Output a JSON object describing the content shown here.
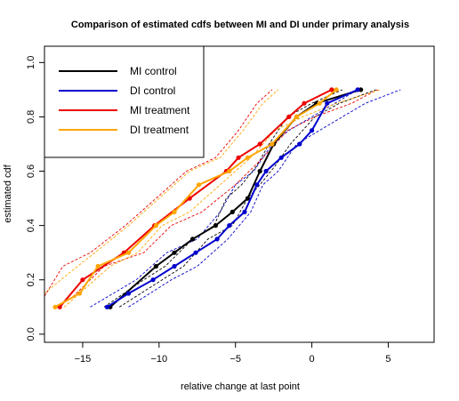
{
  "chart_data": {
    "type": "line",
    "title": "Comparison of estimated cdfs between MI and DI under primary analysis",
    "xlabel": "relative change at last point",
    "ylabel": "estimated cdf",
    "xlim": [
      -17.5,
      8
    ],
    "ylim": [
      -0.03,
      1.06
    ],
    "xticks": [
      -15,
      -10,
      -5,
      0,
      5
    ],
    "yticks": [
      0.0,
      0.2,
      0.4,
      0.6,
      0.8,
      1.0
    ],
    "legend_position": "top-left",
    "series": [
      {
        "name": "MI control",
        "color": "#000000",
        "marker": "point",
        "x": [
          -13.2,
          -10.2,
          -9.0,
          -7.8,
          -6.3,
          -5.2,
          -4.2,
          -3.4,
          -2.5,
          -1.0,
          0.3,
          3.2
        ],
        "y": [
          0.1,
          0.25,
          0.3,
          0.35,
          0.4,
          0.45,
          0.5,
          0.6,
          0.7,
          0.8,
          0.85,
          0.9
        ]
      },
      {
        "name": "DI control",
        "color": "#0000CD",
        "marker": "point",
        "x": [
          -13.4,
          -12.0,
          -10.4,
          -9.0,
          -7.6,
          -6.2,
          -5.4,
          -4.4,
          -3.6,
          -3.0,
          -2.0,
          -0.8,
          0.0,
          1.0,
          3.0
        ],
        "y": [
          0.1,
          0.15,
          0.2,
          0.25,
          0.3,
          0.35,
          0.4,
          0.45,
          0.55,
          0.6,
          0.65,
          0.7,
          0.75,
          0.85,
          0.9
        ]
      },
      {
        "name": "MI treatment",
        "color": "#EE0000",
        "marker": "point",
        "x": [
          -16.5,
          -15.0,
          -12.3,
          -10.3,
          -8.0,
          -5.6,
          -4.8,
          -3.4,
          -1.5,
          -0.5,
          1.3
        ],
        "y": [
          0.1,
          0.2,
          0.3,
          0.4,
          0.5,
          0.6,
          0.65,
          0.7,
          0.8,
          0.85,
          0.9
        ]
      },
      {
        "name": "DI treatment",
        "color": "#FFA500",
        "marker": "point",
        "x": [
          -16.8,
          -15.2,
          -14.0,
          -12.0,
          -10.2,
          -9.0,
          -7.4,
          -5.4,
          -4.2,
          -2.6,
          -1.0,
          0.5,
          1.6
        ],
        "y": [
          0.1,
          0.15,
          0.25,
          0.3,
          0.4,
          0.45,
          0.55,
          0.6,
          0.65,
          0.7,
          0.8,
          0.85,
          0.9
        ]
      }
    ],
    "bands": [
      {
        "color": "#0000CD",
        "x": [
          -14.5,
          -11.5,
          -9.5,
          -7.5,
          -6.0,
          -5.0,
          -3.8,
          -2.6,
          -1.5,
          0.0,
          1.5,
          3.0
        ],
        "y": [
          0.1,
          0.2,
          0.3,
          0.35,
          0.45,
          0.55,
          0.6,
          0.7,
          0.75,
          0.8,
          0.85,
          0.9
        ]
      },
      {
        "color": "#0000CD",
        "x": [
          -12.0,
          -9.2,
          -7.5,
          -5.5,
          -4.0,
          -3.2,
          -2.2,
          -1.0,
          0.5,
          2.0,
          3.5,
          5.8
        ],
        "y": [
          0.1,
          0.2,
          0.25,
          0.35,
          0.45,
          0.55,
          0.6,
          0.7,
          0.75,
          0.8,
          0.85,
          0.9
        ]
      },
      {
        "color": "#000000",
        "x": [
          -13.6,
          -11.0,
          -9.6,
          -7.8,
          -6.4,
          -5.6,
          -4.6,
          -3.6,
          -2.8,
          -1.6,
          0.0,
          2.0
        ],
        "y": [
          0.1,
          0.2,
          0.25,
          0.35,
          0.4,
          0.5,
          0.55,
          0.62,
          0.7,
          0.8,
          0.85,
          0.9
        ]
      },
      {
        "color": "#000000",
        "x": [
          -12.6,
          -9.8,
          -8.4,
          -6.8,
          -5.2,
          -4.2,
          -3.4,
          -2.4,
          -1.4,
          0.2,
          1.8,
          4.2
        ],
        "y": [
          0.1,
          0.2,
          0.25,
          0.35,
          0.4,
          0.5,
          0.55,
          0.62,
          0.7,
          0.8,
          0.85,
          0.9
        ]
      },
      {
        "color": "#EE0000",
        "x": [
          -17.5,
          -16.3,
          -14.5,
          -12.2,
          -10.2,
          -8.2,
          -6.3,
          -4.8,
          -3.6,
          -2.6
        ],
        "y": [
          0.14,
          0.25,
          0.3,
          0.4,
          0.5,
          0.6,
          0.65,
          0.75,
          0.85,
          0.9
        ]
      },
      {
        "color": "#EE0000",
        "x": [
          -16.6,
          -15.6,
          -13.6,
          -11.0,
          -9.2,
          -7.2,
          -5.0,
          -3.2,
          -1.6,
          0.2,
          2.6,
          4.3
        ],
        "y": [
          0.1,
          0.14,
          0.25,
          0.3,
          0.4,
          0.45,
          0.55,
          0.65,
          0.75,
          0.8,
          0.85,
          0.9
        ]
      },
      {
        "color": "#FFA500",
        "x": [
          -17.5,
          -16.0,
          -14.2,
          -12.0,
          -10.0,
          -8.0,
          -6.0,
          -4.5,
          -3.2,
          -2.2
        ],
        "y": [
          0.15,
          0.22,
          0.3,
          0.4,
          0.5,
          0.6,
          0.65,
          0.75,
          0.85,
          0.9
        ]
      },
      {
        "color": "#FFA500",
        "x": [
          -16.2,
          -15.2,
          -13.2,
          -11.4,
          -9.8,
          -8.0,
          -6.0,
          -4.0,
          -2.4,
          -0.6,
          1.6,
          4.5
        ],
        "y": [
          0.1,
          0.15,
          0.25,
          0.3,
          0.4,
          0.45,
          0.55,
          0.65,
          0.75,
          0.8,
          0.85,
          0.9
        ]
      }
    ]
  }
}
